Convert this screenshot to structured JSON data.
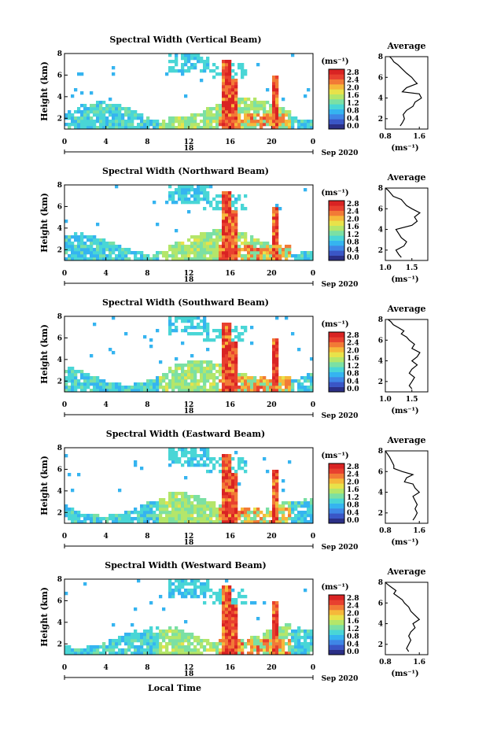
{
  "figure": {
    "x_axis_label": "Local Time",
    "date_label": "Sep 2020",
    "day_label": "18",
    "colorbar_unit": "(ms⁻¹)",
    "profile_title": "Average",
    "profile_unit": "(ms⁻¹)",
    "ylabel": "Height (km)"
  },
  "colors": {
    "scale": [
      "#2b2f86",
      "#3a56c6",
      "#3f86e6",
      "#35b4f0",
      "#49d6d6",
      "#7be0a4",
      "#b4e66a",
      "#e8e24a",
      "#f6b83a",
      "#f27a36",
      "#e8402f",
      "#d92323"
    ],
    "frame": "#000000",
    "background": "#ffffff"
  },
  "chart_data": [
    {
      "type": "heatmap",
      "title": "Spectral Width (Vertical Beam)",
      "ylabel": "Height (km)",
      "xlim": [
        0,
        24
      ],
      "ylim": [
        1,
        8
      ],
      "xticks": [
        "0",
        "4",
        "8",
        "12",
        "16",
        "20",
        "0"
      ],
      "yticks": [
        "2",
        "4",
        "6",
        "8"
      ],
      "colorbar_range": [
        0.0,
        2.8
      ],
      "colorbar_ticks": [
        "2.8",
        "2.4",
        "2.0",
        "1.6",
        "1.2",
        "0.8",
        "0.4",
        "0.0"
      ],
      "profile": {
        "title": "Average",
        "xlim": [
          0.8,
          1.8
        ],
        "xticks": [
          "0.8",
          "1.6"
        ],
        "ylim": [
          1,
          8
        ],
        "yticks": [
          "2",
          "4",
          "6",
          "8"
        ],
        "x": [
          1.15,
          1.2,
          1.25,
          1.22,
          1.3,
          1.45,
          1.5,
          1.65,
          1.6,
          1.2,
          1.3,
          1.55,
          1.5,
          1.42,
          1.3,
          1.2,
          1.1,
          1.0,
          0.95,
          0.9
        ],
        "y": [
          1.3,
          1.6,
          2.0,
          2.4,
          2.8,
          3.2,
          3.6,
          4.0,
          4.4,
          4.6,
          5.0,
          5.4,
          5.6,
          6.0,
          6.4,
          6.8,
          7.2,
          7.5,
          7.8,
          8.0
        ]
      }
    },
    {
      "type": "heatmap",
      "title": "Spectral Width (Northward Beam)",
      "ylabel": "Height (km)",
      "xlim": [
        0,
        24
      ],
      "ylim": [
        1,
        8
      ],
      "xticks": [
        "0",
        "4",
        "8",
        "12",
        "16",
        "20",
        "0"
      ],
      "yticks": [
        "2",
        "4",
        "6",
        "8"
      ],
      "colorbar_range": [
        0.0,
        2.8
      ],
      "colorbar_ticks": [
        "2.8",
        "2.4",
        "2.0",
        "1.6",
        "1.2",
        "0.8",
        "0.4",
        "0.0"
      ],
      "profile": {
        "title": "Average",
        "xlim": [
          1.0,
          1.8
        ],
        "xticks": [
          "1.0",
          "1.5"
        ],
        "ylim": [
          1,
          8
        ],
        "yticks": [
          "2",
          "4",
          "6",
          "8"
        ],
        "x": [
          1.3,
          1.25,
          1.2,
          1.35,
          1.4,
          1.3,
          1.25,
          1.2,
          1.5,
          1.6,
          1.55,
          1.65,
          1.5,
          1.4,
          1.35,
          1.3,
          1.15,
          1.1,
          1.05,
          1.0
        ],
        "y": [
          1.3,
          1.6,
          2.0,
          2.4,
          2.8,
          3.2,
          3.6,
          4.0,
          4.4,
          4.8,
          5.2,
          5.6,
          6.0,
          6.3,
          6.6,
          6.9,
          7.2,
          7.5,
          7.8,
          8.0
        ]
      }
    },
    {
      "type": "heatmap",
      "title": "Spectral Width (Southward Beam)",
      "ylabel": "Height (km)",
      "xlim": [
        0,
        24
      ],
      "ylim": [
        1,
        8
      ],
      "xticks": [
        "0",
        "4",
        "8",
        "12",
        "16",
        "20",
        "0"
      ],
      "yticks": [
        "2",
        "4",
        "6",
        "8"
      ],
      "colorbar_range": [
        0.0,
        2.8
      ],
      "colorbar_ticks": [
        "2.8",
        "2.4",
        "2.0",
        "1.6",
        "1.2",
        "0.8",
        "0.4",
        "0.0"
      ],
      "profile": {
        "title": "Average",
        "xlim": [
          1.0,
          1.8
        ],
        "xticks": [
          "1.0",
          "1.5"
        ],
        "ylim": [
          1,
          8
        ],
        "yticks": [
          "2",
          "4",
          "6",
          "8"
        ],
        "x": [
          1.5,
          1.45,
          1.5,
          1.55,
          1.45,
          1.5,
          1.6,
          1.5,
          1.6,
          1.65,
          1.5,
          1.55,
          1.45,
          1.4,
          1.3,
          1.35,
          1.25,
          1.15,
          1.1,
          1.05
        ],
        "y": [
          1.3,
          1.6,
          2.0,
          2.4,
          2.8,
          3.2,
          3.6,
          4.0,
          4.4,
          4.8,
          5.2,
          5.6,
          6.0,
          6.3,
          6.6,
          6.9,
          7.2,
          7.5,
          7.8,
          8.0
        ]
      }
    },
    {
      "type": "heatmap",
      "title": "Spectral Width (Eastward Beam)",
      "ylabel": "Height (km)",
      "xlim": [
        0,
        24
      ],
      "ylim": [
        1,
        8
      ],
      "xticks": [
        "0",
        "4",
        "8",
        "12",
        "16",
        "20",
        "0"
      ],
      "yticks": [
        "2",
        "4",
        "6",
        "8"
      ],
      "colorbar_range": [
        0.0,
        2.8
      ],
      "colorbar_ticks": [
        "2.8",
        "2.4",
        "2.0",
        "1.6",
        "1.2",
        "0.8",
        "0.4",
        "0.0"
      ],
      "profile": {
        "title": "Average",
        "xlim": [
          0.8,
          1.8
        ],
        "xticks": [
          "0.8",
          "1.6"
        ],
        "ylim": [
          1,
          8
        ],
        "yticks": [
          "2",
          "4",
          "6",
          "8"
        ],
        "x": [
          1.45,
          1.5,
          1.55,
          1.5,
          1.55,
          1.5,
          1.45,
          1.6,
          1.5,
          1.45,
          1.25,
          1.3,
          1.45,
          1.2,
          1.0,
          1.0,
          0.95,
          0.9,
          0.85,
          0.8
        ],
        "y": [
          1.3,
          1.6,
          2.0,
          2.4,
          2.8,
          3.2,
          3.6,
          4.0,
          4.4,
          4.8,
          5.0,
          5.4,
          5.7,
          6.0,
          6.3,
          6.6,
          7.0,
          7.4,
          7.7,
          8.0
        ]
      }
    },
    {
      "type": "heatmap",
      "title": "Spectral Width (Westward Beam)",
      "ylabel": "Height (km)",
      "xlabel": "Local Time",
      "xlim": [
        0,
        24
      ],
      "ylim": [
        1,
        8
      ],
      "xticks": [
        "0",
        "4",
        "8",
        "12",
        "16",
        "20",
        "0"
      ],
      "yticks": [
        "2",
        "4",
        "6",
        "8"
      ],
      "colorbar_range": [
        0.0,
        2.8
      ],
      "colorbar_ticks": [
        "2.8",
        "2.4",
        "2.0",
        "1.6",
        "1.2",
        "0.8",
        "0.4",
        "0.0"
      ],
      "profile": {
        "title": "Average",
        "xlim": [
          0.8,
          1.8
        ],
        "xticks": [
          "0.8",
          "1.6"
        ],
        "ylim": [
          1,
          8
        ],
        "yticks": [
          "2",
          "4",
          "6",
          "8"
        ],
        "x": [
          1.35,
          1.3,
          1.35,
          1.4,
          1.35,
          1.4,
          1.5,
          1.45,
          1.6,
          1.5,
          1.4,
          1.35,
          1.25,
          1.2,
          1.1,
          1.0,
          1.05,
          0.95,
          0.85,
          0.8
        ],
        "y": [
          1.3,
          1.6,
          2.0,
          2.4,
          2.8,
          3.2,
          3.6,
          4.0,
          4.4,
          4.8,
          5.2,
          5.6,
          6.0,
          6.3,
          6.6,
          6.9,
          7.2,
          7.5,
          7.8,
          8.0
        ]
      }
    }
  ]
}
